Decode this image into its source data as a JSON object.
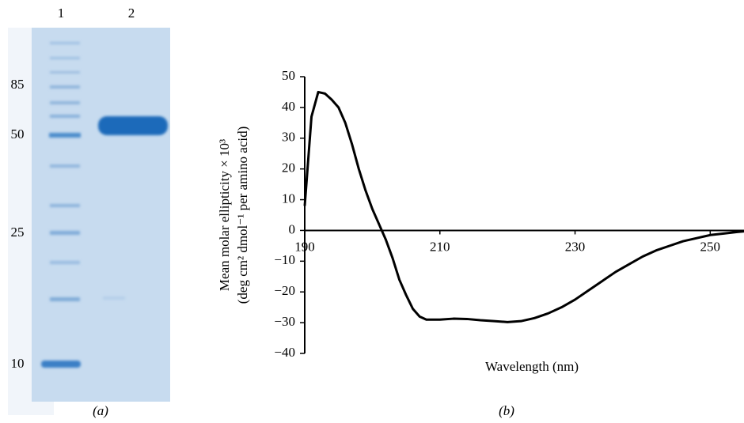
{
  "gel": {
    "lanes": [
      "1",
      "2"
    ],
    "markers": [
      "85",
      "50",
      "25",
      "10"
    ],
    "panel_label": "(a)"
  },
  "chart_data": {
    "type": "line",
    "panel_label": "(b)",
    "x_label": "Wavelength (nm)",
    "y_label": [
      "Mean molar ellipticity × 10³",
      "(deg cm² dmol⁻¹ per amino acid)"
    ],
    "x": [
      190,
      191,
      192,
      193,
      194,
      195,
      196,
      197,
      198,
      199,
      200,
      201,
      202,
      203,
      204,
      205,
      206,
      207,
      208,
      210,
      212,
      214,
      216,
      218,
      220,
      222,
      224,
      226,
      228,
      230,
      232,
      234,
      236,
      238,
      240,
      242,
      244,
      246,
      248,
      250,
      252,
      254,
      255
    ],
    "values": [
      8,
      37,
      45,
      44.5,
      42.5,
      40,
      35,
      28,
      20,
      13,
      7,
      2,
      -3,
      -9,
      -16,
      -21,
      -25.5,
      -28,
      -29,
      -29,
      -28.7,
      -28.8,
      -29.2,
      -29.5,
      -29.8,
      -29.5,
      -28.5,
      -27,
      -25,
      -22.5,
      -19.5,
      -16.5,
      -13.5,
      -11,
      -8.5,
      -6.5,
      -5,
      -3.5,
      -2.5,
      -1.5,
      -1,
      -0.5,
      -0.3
    ],
    "color": "#000000",
    "xlim": [
      190,
      255
    ],
    "xticks": [
      190,
      210,
      230,
      250
    ],
    "ylim": [
      -40,
      50
    ],
    "yticks": [
      {
        "value": -40,
        "label": "−40"
      },
      {
        "value": -30,
        "label": "−30"
      },
      {
        "value": -20,
        "label": "−20"
      },
      {
        "value": -10,
        "label": "−10"
      },
      0,
      10,
      20,
      30,
      40,
      50
    ]
  }
}
